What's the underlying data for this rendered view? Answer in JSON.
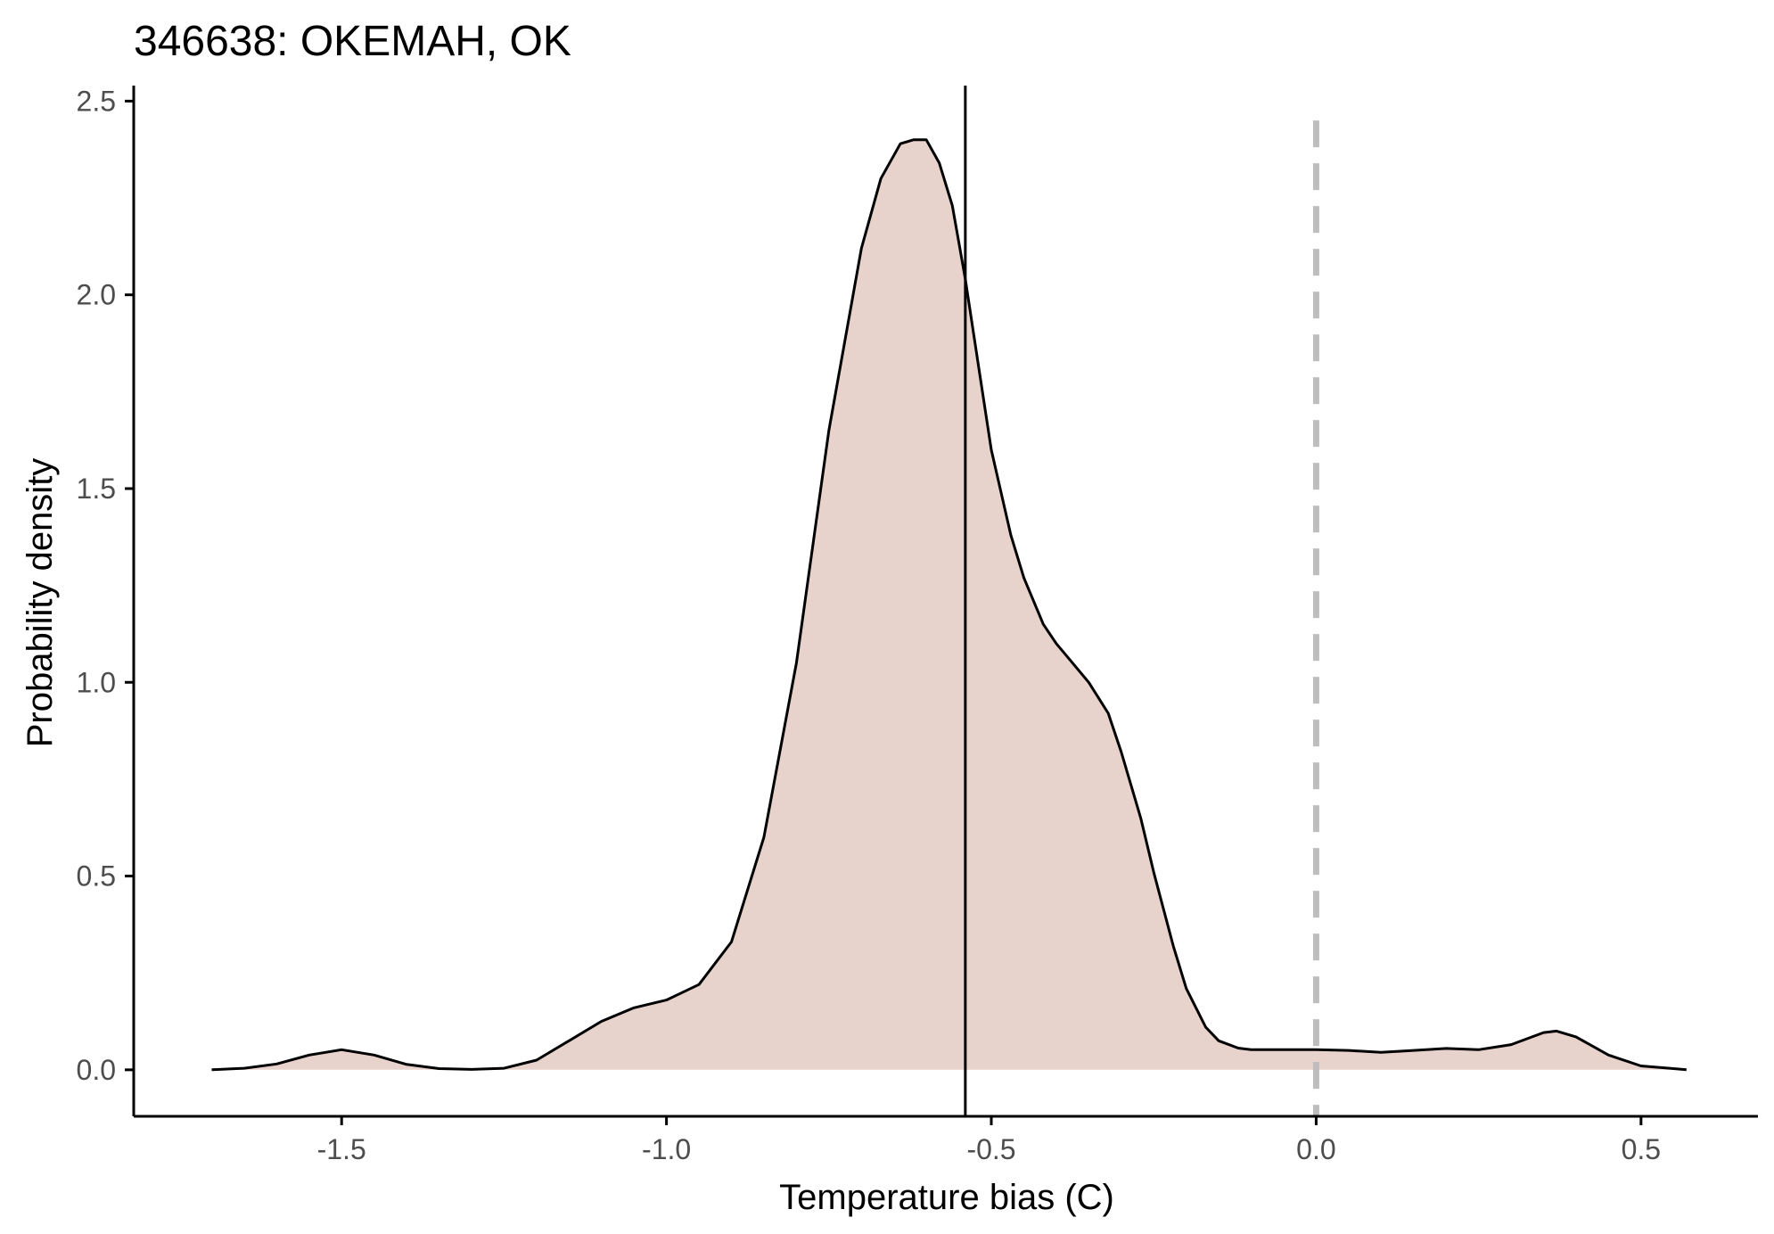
{
  "chart_data": {
    "type": "area",
    "title": "346638: OKEMAH, OK",
    "xlabel": "Temperature bias (C)",
    "ylabel": "Probability density",
    "xlim": [
      -1.82,
      0.68
    ],
    "ylim": [
      -0.12,
      2.54
    ],
    "x_ticks": [
      -1.5,
      -1.0,
      -0.5,
      0.0,
      0.5
    ],
    "x_tick_labels": [
      "-1.5",
      "-1.0",
      "-0.5",
      "0.0",
      "0.5"
    ],
    "y_ticks": [
      0.0,
      0.5,
      1.0,
      1.5,
      2.0,
      2.5
    ],
    "y_tick_labels": [
      "0.0",
      "0.5",
      "1.0",
      "1.5",
      "2.0",
      "2.5"
    ],
    "grid": false,
    "legend": "none",
    "fill_color": "#e8d2cc",
    "line_color": "#000000",
    "series": [
      {
        "x": [
          -1.7,
          -1.65,
          -1.6,
          -1.55,
          -1.5,
          -1.45,
          -1.4,
          -1.35,
          -1.3,
          -1.25,
          -1.2,
          -1.15,
          -1.1,
          -1.05,
          -1.0,
          -0.95,
          -0.9,
          -0.85,
          -0.8,
          -0.75,
          -0.7,
          -0.67,
          -0.64,
          -0.62,
          -0.6,
          -0.58,
          -0.56,
          -0.54,
          -0.52,
          -0.5,
          -0.47,
          -0.45,
          -0.42,
          -0.4,
          -0.38,
          -0.35,
          -0.32,
          -0.3,
          -0.27,
          -0.25,
          -0.22,
          -0.2,
          -0.17,
          -0.15,
          -0.12,
          -0.1,
          -0.05,
          0.0,
          0.05,
          0.1,
          0.15,
          0.2,
          0.25,
          0.3,
          0.35,
          0.37,
          0.4,
          0.45,
          0.5,
          0.55,
          0.57
        ],
        "y": [
          0.0,
          0.004,
          0.015,
          0.038,
          0.052,
          0.038,
          0.014,
          0.003,
          0.001,
          0.004,
          0.025,
          0.075,
          0.125,
          0.16,
          0.18,
          0.22,
          0.33,
          0.6,
          1.05,
          1.65,
          2.12,
          2.3,
          2.39,
          2.4,
          2.4,
          2.34,
          2.23,
          2.04,
          1.82,
          1.6,
          1.38,
          1.27,
          1.15,
          1.1,
          1.06,
          1.0,
          0.92,
          0.82,
          0.65,
          0.51,
          0.32,
          0.21,
          0.11,
          0.075,
          0.056,
          0.052,
          0.052,
          0.052,
          0.05,
          0.045,
          0.05,
          0.055,
          0.052,
          0.065,
          0.096,
          0.1,
          0.085,
          0.038,
          0.01,
          0.003,
          0.0
        ]
      }
    ],
    "reference_lines": [
      {
        "x": -0.54,
        "style": "solid",
        "color": "#000000"
      },
      {
        "x": 0.0,
        "style": "dashed",
        "color": "#bdbdbd"
      }
    ]
  }
}
